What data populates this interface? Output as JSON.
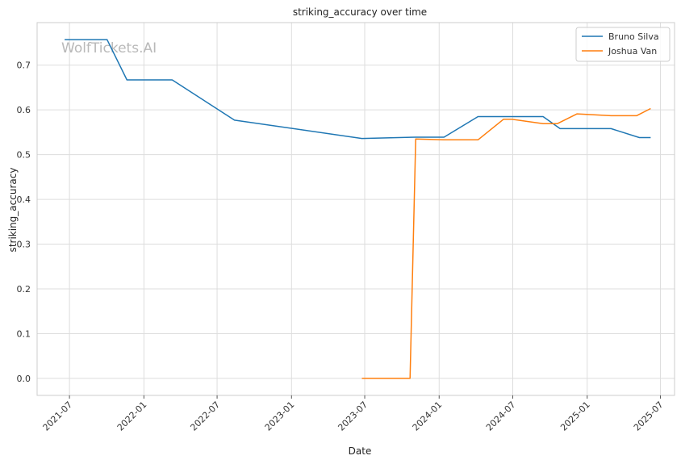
{
  "watermark": "WolfTickets.AI",
  "chart_data": {
    "type": "line",
    "title": "striking_accuracy over time",
    "xlabel": "Date",
    "ylabel": "striking_accuracy",
    "x_axis_type": "date",
    "xlim": [
      "2021-04-12",
      "2025-08-05"
    ],
    "ylim": [
      -0.038,
      0.795
    ],
    "x_ticks": [
      "2021-07-01",
      "2022-01-01",
      "2022-07-01",
      "2023-01-01",
      "2023-07-01",
      "2024-01-01",
      "2024-07-01",
      "2025-01-01",
      "2025-07-01"
    ],
    "x_tick_labels": [
      "2021-07",
      "2022-01",
      "2022-07",
      "2023-01",
      "2023-07",
      "2024-01",
      "2024-07",
      "2025-01",
      "2025-07"
    ],
    "y_ticks": [
      0.0,
      0.1,
      0.2,
      0.3,
      0.4,
      0.5,
      0.6,
      0.7
    ],
    "y_tick_labels": [
      "0.0",
      "0.1",
      "0.2",
      "0.3",
      "0.4",
      "0.5",
      "0.6",
      "0.7"
    ],
    "grid": true,
    "legend_position": "top-right",
    "series": [
      {
        "name": "Bruno Silva",
        "color": "#1f77b4",
        "points": [
          [
            "2021-06-19",
            0.757
          ],
          [
            "2021-10-02",
            0.757
          ],
          [
            "2021-11-20",
            0.667
          ],
          [
            "2022-03-12",
            0.667
          ],
          [
            "2022-08-13",
            0.577
          ],
          [
            "2023-06-24",
            0.536
          ],
          [
            "2023-11-04",
            0.539
          ],
          [
            "2024-01-13",
            0.539
          ],
          [
            "2024-04-06",
            0.585
          ],
          [
            "2024-09-14",
            0.585
          ],
          [
            "2024-10-26",
            0.558
          ],
          [
            "2025-03-01",
            0.558
          ],
          [
            "2025-05-10",
            0.538
          ],
          [
            "2025-06-07",
            0.538
          ]
        ]
      },
      {
        "name": "Joshua Van",
        "color": "#ff7f0e",
        "points": [
          [
            "2023-06-24",
            0.0
          ],
          [
            "2023-10-21",
            0.0
          ],
          [
            "2023-11-04",
            0.535
          ],
          [
            "2024-01-13",
            0.533
          ],
          [
            "2024-04-06",
            0.533
          ],
          [
            "2024-06-08",
            0.579
          ],
          [
            "2024-06-29",
            0.579
          ],
          [
            "2024-09-14",
            0.569
          ],
          [
            "2024-10-19",
            0.569
          ],
          [
            "2024-12-07",
            0.591
          ],
          [
            "2025-03-01",
            0.587
          ],
          [
            "2025-05-03",
            0.587
          ],
          [
            "2025-06-07",
            0.603
          ]
        ]
      }
    ]
  }
}
